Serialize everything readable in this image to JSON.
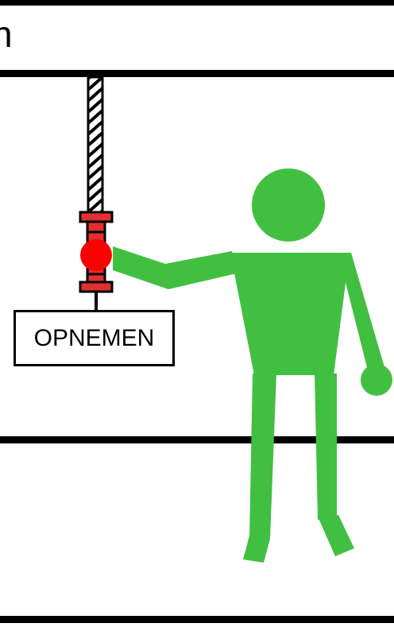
{
  "header": {
    "text": "n"
  },
  "label": {
    "text": "OPNEMEN"
  },
  "colors": {
    "figure": "#41bf41",
    "pendant": "#e03030",
    "button": "#ff0000",
    "lines": "#000000"
  },
  "icons": {
    "figure": "person-icon",
    "pendant": "pendant-control-icon",
    "cable": "twisted-cable-icon"
  }
}
